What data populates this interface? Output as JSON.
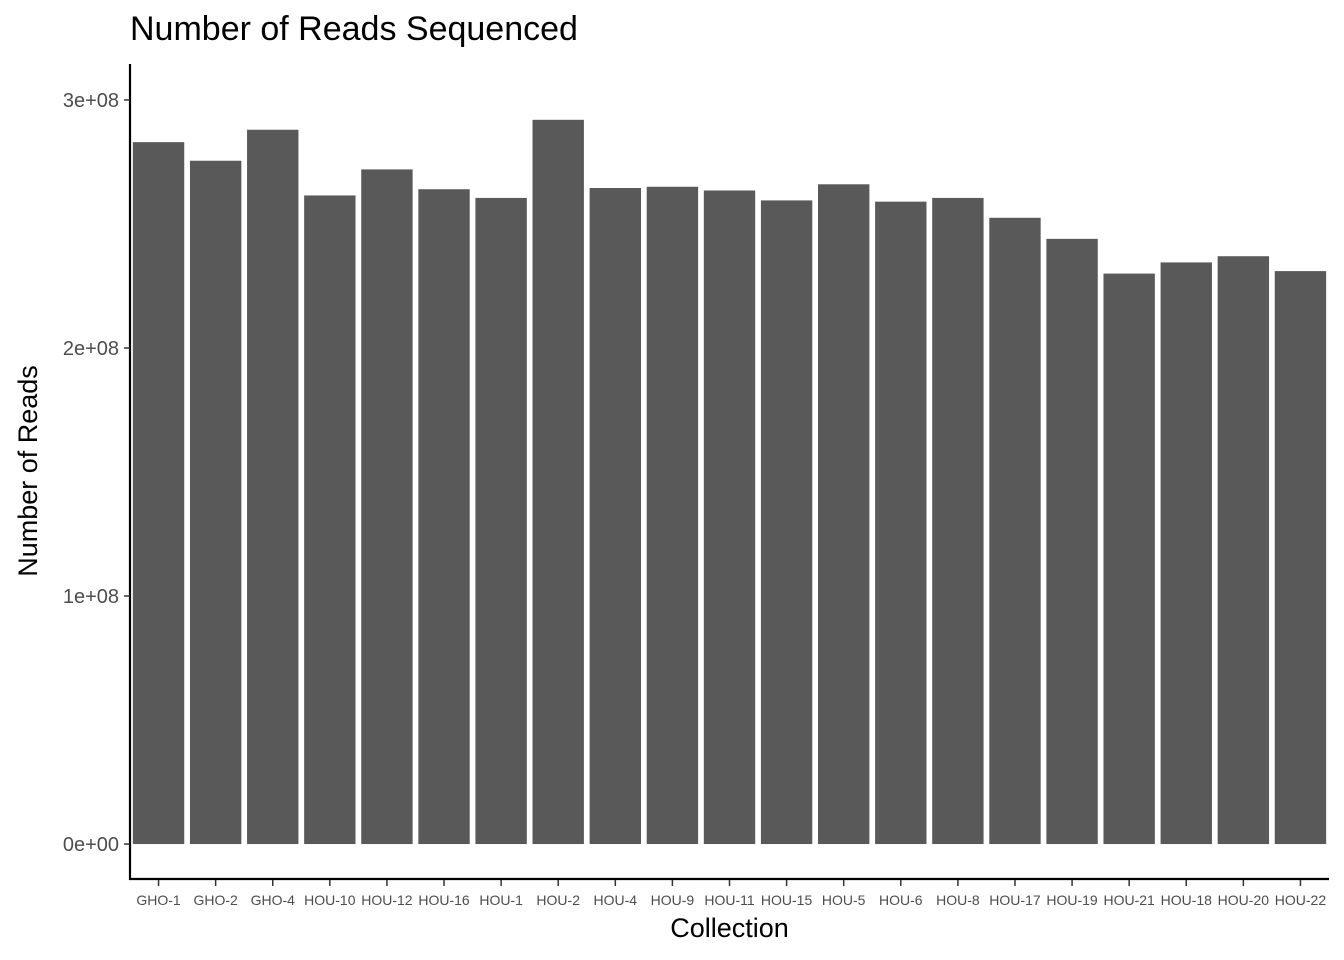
{
  "chart_data": {
    "type": "bar",
    "title": "Number of Reads Sequenced",
    "xlabel": "Collection",
    "ylabel": "Number of Reads",
    "categories": [
      "GHO-1",
      "GHO-2",
      "GHO-4",
      "HOU-10",
      "HOU-12",
      "HOU-16",
      "HOU-1",
      "HOU-2",
      "HOU-4",
      "HOU-9",
      "HOU-11",
      "HOU-15",
      "HOU-5",
      "HOU-6",
      "HOU-8",
      "HOU-17",
      "HOU-19",
      "HOU-21",
      "HOU-18",
      "HOU-20",
      "HOU-22"
    ],
    "values": [
      283000000,
      275500000,
      288000000,
      261500000,
      272000000,
      264000000,
      260500000,
      292000000,
      264500000,
      265000000,
      263500000,
      259500000,
      266000000,
      259000000,
      260500000,
      252500000,
      244000000,
      230000000,
      234500000,
      237000000,
      231000000
    ],
    "yticks": [
      0,
      100000000,
      200000000,
      300000000
    ],
    "ytick_labels": [
      "0e+00",
      "1e+08",
      "2e+08",
      "3e+08"
    ],
    "ylim": [
      -14500000,
      314500000
    ],
    "bar_color": "#595959",
    "grid": false,
    "legend": "none"
  }
}
